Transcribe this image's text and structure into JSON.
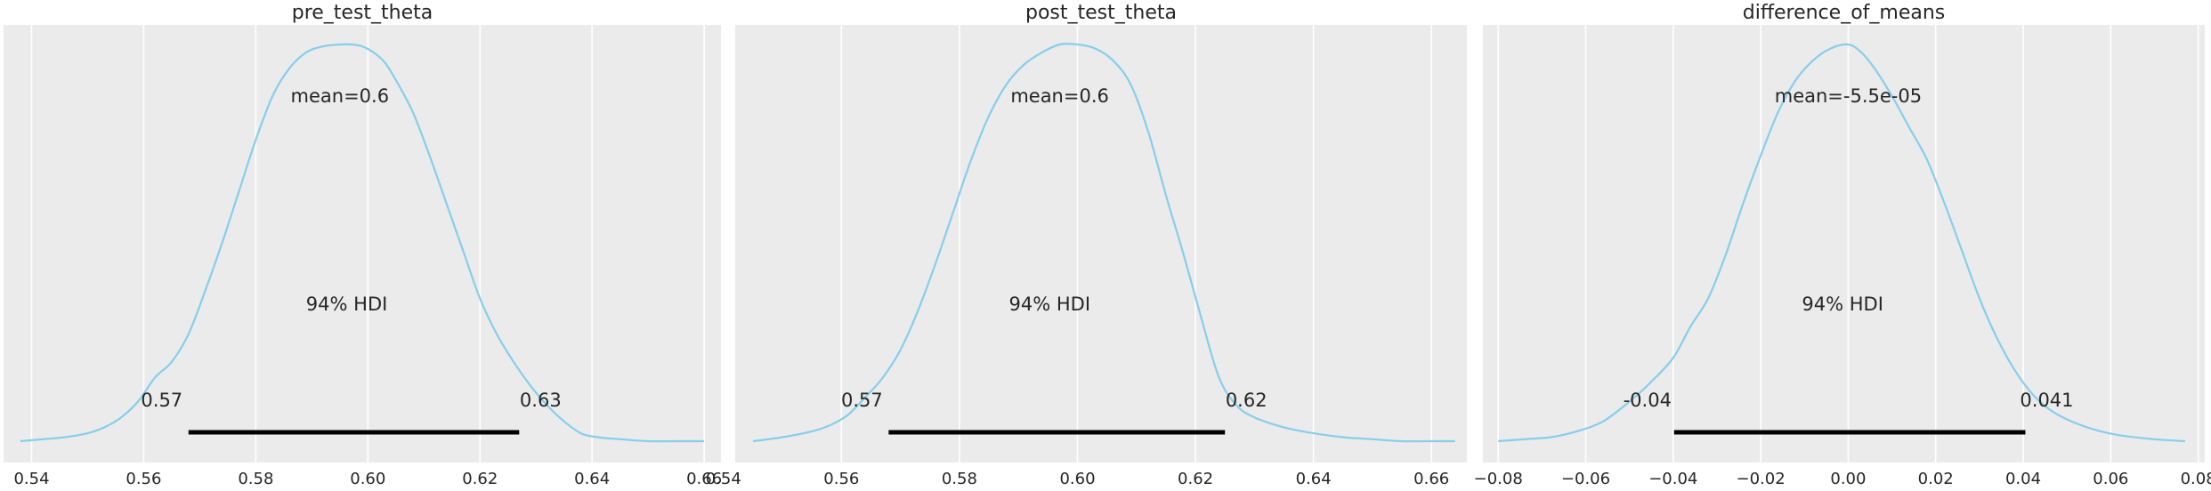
{
  "chart_data": [
    {
      "type": "area",
      "title": "pre_test_theta",
      "xlabel": "",
      "ylabel": "",
      "xlim": [
        0.535,
        0.663
      ],
      "xticks": [
        0.54,
        0.56,
        0.58,
        0.6,
        0.62,
        0.64,
        0.66
      ],
      "xtick_labels": [
        "0.54",
        "0.56",
        "0.58",
        "0.60",
        "0.62",
        "0.64",
        "0.66"
      ],
      "grid": true,
      "density": {
        "x": [
          0.538,
          0.542,
          0.546,
          0.55,
          0.553,
          0.556,
          0.559,
          0.562,
          0.565,
          0.568,
          0.571,
          0.574,
          0.577,
          0.58,
          0.583,
          0.586,
          0.589,
          0.592,
          0.595,
          0.597,
          0.599,
          0.601,
          0.603,
          0.605,
          0.608,
          0.611,
          0.614,
          0.617,
          0.62,
          0.623,
          0.626,
          0.629,
          0.632,
          0.635,
          0.638,
          0.641,
          0.645,
          0.65,
          0.655,
          0.66
        ],
        "y": [
          0.0,
          0.005,
          0.01,
          0.02,
          0.035,
          0.06,
          0.1,
          0.16,
          0.2,
          0.27,
          0.38,
          0.5,
          0.63,
          0.76,
          0.87,
          0.94,
          0.98,
          0.995,
          1.0,
          1.0,
          0.995,
          0.98,
          0.955,
          0.91,
          0.83,
          0.72,
          0.6,
          0.48,
          0.36,
          0.27,
          0.2,
          0.14,
          0.09,
          0.05,
          0.02,
          0.01,
          0.005,
          0.0,
          0.0,
          0.0
        ]
      },
      "mean_label": "mean=0.6",
      "hdi": {
        "label": "94% HDI",
        "low": 0.568,
        "high": 0.627,
        "low_label": "0.57",
        "high_label": "0.63"
      }
    },
    {
      "type": "area",
      "title": "post_test_theta",
      "xlabel": "",
      "ylabel": "",
      "xlim": [
        0.542,
        0.666
      ],
      "xticks": [
        0.54,
        0.56,
        0.58,
        0.6,
        0.62,
        0.64,
        0.66
      ],
      "xtick_labels": [
        "0.54",
        "0.56",
        "0.58",
        "0.60",
        "0.62",
        "0.64",
        "0.66"
      ],
      "grid": true,
      "density": {
        "x": [
          0.545,
          0.55,
          0.555,
          0.558,
          0.561,
          0.564,
          0.567,
          0.57,
          0.573,
          0.576,
          0.579,
          0.582,
          0.585,
          0.588,
          0.591,
          0.594,
          0.597,
          0.6,
          0.603,
          0.606,
          0.609,
          0.612,
          0.615,
          0.618,
          0.621,
          0.624,
          0.627,
          0.63,
          0.635,
          0.64,
          0.645,
          0.65,
          0.655,
          0.66,
          0.664
        ],
        "y": [
          0.0,
          0.01,
          0.025,
          0.04,
          0.065,
          0.11,
          0.16,
          0.23,
          0.33,
          0.45,
          0.58,
          0.71,
          0.82,
          0.9,
          0.95,
          0.98,
          1.0,
          1.0,
          0.99,
          0.96,
          0.9,
          0.78,
          0.62,
          0.47,
          0.31,
          0.16,
          0.09,
          0.06,
          0.035,
          0.02,
          0.01,
          0.005,
          0.0,
          0.0,
          0.0
        ]
      },
      "mean_label": "mean=0.6",
      "hdi": {
        "label": "94% HDI",
        "low": 0.568,
        "high": 0.625,
        "low_label": "0.57",
        "high_label": "0.62"
      }
    },
    {
      "type": "area",
      "title": "difference_of_means",
      "xlabel": "",
      "ylabel": "",
      "xlim": [
        -0.0835,
        0.0815
      ],
      "xticks": [
        -0.08,
        -0.06,
        -0.04,
        -0.02,
        0.0,
        0.02,
        0.04,
        0.06,
        0.08
      ],
      "xtick_labels": [
        "−0.08",
        "−0.06",
        "−0.04",
        "−0.02",
        "0.00",
        "0.02",
        "0.04",
        "0.06",
        "0.08"
      ],
      "grid": true,
      "density": {
        "x": [
          -0.08,
          -0.074,
          -0.068,
          -0.062,
          -0.056,
          -0.05,
          -0.045,
          -0.04,
          -0.036,
          -0.032,
          -0.028,
          -0.024,
          -0.02,
          -0.016,
          -0.012,
          -0.008,
          -0.004,
          0.0,
          0.003,
          0.006,
          0.01,
          0.014,
          0.018,
          0.022,
          0.026,
          0.03,
          0.034,
          0.038,
          0.042,
          0.046,
          0.05,
          0.056,
          0.062,
          0.07,
          0.077
        ],
        "y": [
          0.0,
          0.005,
          0.01,
          0.025,
          0.05,
          0.1,
          0.15,
          0.21,
          0.29,
          0.36,
          0.47,
          0.6,
          0.72,
          0.83,
          0.91,
          0.96,
          0.99,
          1.0,
          0.98,
          0.94,
          0.87,
          0.79,
          0.71,
          0.6,
          0.48,
          0.36,
          0.26,
          0.18,
          0.12,
          0.08,
          0.055,
          0.03,
          0.015,
          0.005,
          0.0
        ]
      },
      "mean_label": "mean=-5.5e-05",
      "hdi": {
        "label": "94% HDI",
        "low": -0.0398,
        "high": 0.0405,
        "low_label": "-0.04",
        "high_label": "0.041"
      }
    }
  ],
  "colors": {
    "curve": "#87ceeb",
    "background": "#ebebeb",
    "grid": "#ffffff",
    "hdi_bar": "#000000",
    "text": "#262626"
  }
}
